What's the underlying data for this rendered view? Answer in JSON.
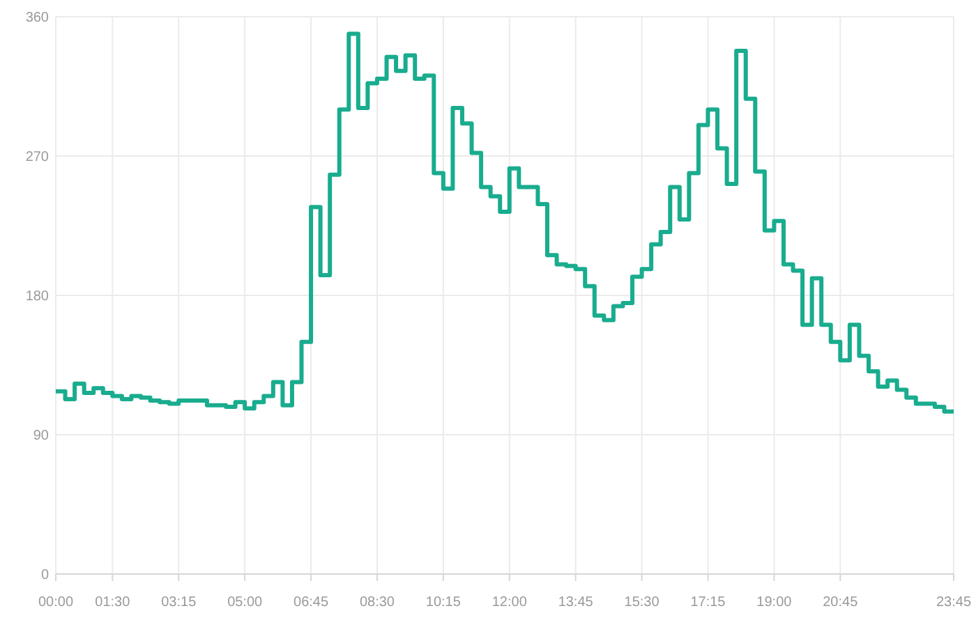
{
  "chart_data": {
    "type": "step",
    "x": [
      0,
      0.25,
      0.5,
      0.75,
      1,
      1.25,
      1.5,
      1.75,
      2,
      2.25,
      2.5,
      2.75,
      3,
      3.25,
      3.5,
      3.75,
      4,
      4.25,
      4.5,
      4.75,
      5,
      5.25,
      5.5,
      5.75,
      6,
      6.25,
      6.5,
      6.75,
      7,
      7.25,
      7.5,
      7.75,
      8,
      8.25,
      8.5,
      8.75,
      9,
      9.25,
      9.5,
      9.75,
      10,
      10.25,
      10.5,
      10.75,
      11,
      11.25,
      11.5,
      11.75,
      12,
      12.25,
      12.5,
      12.75,
      13,
      13.25,
      13.5,
      13.75,
      14,
      14.25,
      14.5,
      14.75,
      15,
      15.25,
      15.5,
      15.75,
      16,
      16.25,
      16.5,
      16.75,
      17,
      17.25,
      17.5,
      17.75,
      18,
      18.25,
      18.5,
      18.75,
      19,
      19.25,
      19.5,
      19.75,
      20,
      20.25,
      20.5,
      20.75,
      21,
      21.25,
      21.5,
      21.75,
      22,
      22.25,
      22.5,
      22.75,
      23,
      23.25,
      23.5,
      23.75
    ],
    "series": [
      {
        "color": "#19ac8e",
        "values": [
          118,
          113,
          123,
          117,
          120,
          117,
          115,
          113,
          115,
          114,
          112,
          111,
          110,
          112,
          112,
          112,
          109,
          109,
          108,
          111,
          107,
          111,
          115,
          124,
          109,
          124,
          150,
          237,
          193,
          258,
          300,
          349,
          301,
          317,
          320,
          334,
          325,
          335,
          320,
          322,
          259,
          249,
          301,
          291,
          272,
          250,
          244,
          234,
          262,
          250,
          250,
          239,
          206,
          200,
          199,
          197,
          186,
          167,
          164,
          173,
          175,
          192,
          197,
          213,
          221,
          250,
          229,
          259,
          290,
          300,
          275,
          252,
          338,
          307,
          260,
          222,
          228,
          200,
          196,
          161,
          191,
          161,
          150,
          138,
          161,
          141,
          131,
          121,
          125,
          119,
          114,
          110,
          110,
          108,
          105,
          105
        ]
      }
    ],
    "xlim": [
      0,
      23.75
    ],
    "xticks": [
      {
        "value": 0,
        "label": "00:00"
      },
      {
        "value": 1.5,
        "label": "01:30"
      },
      {
        "value": 3.25,
        "label": "03:15"
      },
      {
        "value": 5,
        "label": "05:00"
      },
      {
        "value": 6.75,
        "label": "06:45"
      },
      {
        "value": 8.5,
        "label": "08:30"
      },
      {
        "value": 10.25,
        "label": "10:15"
      },
      {
        "value": 12,
        "label": "12:00"
      },
      {
        "value": 13.75,
        "label": "13:45"
      },
      {
        "value": 15.5,
        "label": "15:30"
      },
      {
        "value": 17.25,
        "label": "17:15"
      },
      {
        "value": 19,
        "label": "19:00"
      },
      {
        "value": 20.75,
        "label": "20:45"
      },
      {
        "value": 23.75,
        "label": "23:45"
      }
    ],
    "ylim": [
      0,
      360
    ],
    "yticks": [
      0,
      90,
      180,
      270,
      360
    ],
    "grid": true
  }
}
